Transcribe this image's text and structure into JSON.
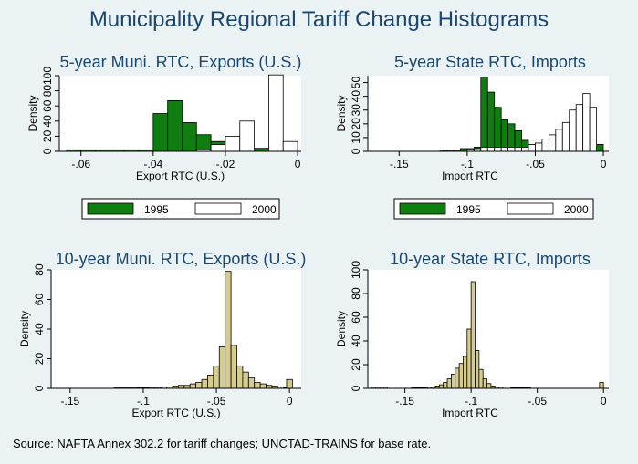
{
  "title": "Municipality Regional Tariff Change Histograms",
  "note": "Source: NAFTA Annex 302.2 for tariff changes; UNCTAD-TRAINS for base rate.",
  "colors": {
    "y1995": "#0f7d0f",
    "y2000": "#ffffff",
    "y10": "#d6cc8f",
    "title": "#1a476f"
  },
  "chart_data": [
    {
      "type": "bar",
      "title": "5-year Muni. RTC, Exports (U.S.)",
      "xlabel": "Export RTC (U.S.)",
      "ylabel": "Density",
      "xlim": [
        -0.066,
        0.001
      ],
      "ylim": [
        0,
        100
      ],
      "xticks": [
        -0.06,
        -0.04,
        -0.02,
        0
      ],
      "xtick_labels": [
        "-.06",
        "-.04",
        "-.02",
        "0"
      ],
      "yticks": [
        0,
        20,
        40,
        60,
        80,
        100
      ],
      "ytick_labels": [
        "0",
        "20",
        "40",
        "60",
        "80",
        "100"
      ],
      "bin_width": 0.004,
      "legend": {
        "position": "bottom",
        "entries": [
          "1995",
          "2000"
        ]
      },
      "series": [
        {
          "name": "1995",
          "bin_starts": [
            -0.064,
            -0.06,
            -0.056,
            -0.052,
            -0.048,
            -0.044,
            -0.04,
            -0.036,
            -0.032,
            -0.028,
            -0.024,
            -0.02,
            -0.016,
            -0.012,
            -0.008,
            -0.004
          ],
          "values": [
            2,
            2,
            2,
            2,
            2,
            2,
            50,
            67,
            38,
            22,
            13,
            6,
            5,
            4,
            6,
            5
          ]
        },
        {
          "name": "2000",
          "bin_starts": [
            -0.048,
            -0.044,
            -0.04,
            -0.036,
            -0.032,
            -0.028,
            -0.024,
            -0.02,
            -0.016,
            -0.012,
            -0.008,
            -0.004
          ],
          "values": [
            0,
            0,
            0,
            0,
            0,
            2,
            9,
            20,
            40,
            0,
            101,
            13
          ]
        }
      ]
    },
    {
      "type": "bar",
      "title": "5-year State RTC, Imports",
      "xlabel": "Import RTC",
      "ylabel": "Density",
      "xlim": [
        -0.173,
        0.004
      ],
      "ylim": [
        0,
        55
      ],
      "xticks": [
        -0.15,
        -0.1,
        -0.05,
        0
      ],
      "xtick_labels": [
        "-.15",
        "-.1",
        "-.05",
        "0"
      ],
      "yticks": [
        0,
        10,
        20,
        30,
        40,
        50
      ],
      "ytick_labels": [
        "0",
        "10",
        "20",
        "30",
        "40",
        "50"
      ],
      "bin_width": 0.005,
      "legend": {
        "position": "bottom",
        "entries": [
          "1995",
          "2000"
        ]
      },
      "series": [
        {
          "name": "1995",
          "bin_starts": [
            -0.12,
            -0.115,
            -0.11,
            -0.105,
            -0.1,
            -0.095,
            -0.09,
            -0.085,
            -0.08,
            -0.075,
            -0.07,
            -0.065,
            -0.06,
            -0.055,
            -0.05,
            -0.045,
            -0.04,
            -0.035,
            -0.005
          ],
          "values": [
            1,
            1,
            1,
            2,
            2,
            3,
            54,
            43,
            32,
            23,
            20,
            15,
            8,
            5,
            3,
            2,
            2,
            1,
            5
          ]
        },
        {
          "name": "2000",
          "bin_starts": [
            -0.1,
            -0.095,
            -0.09,
            -0.085,
            -0.08,
            -0.075,
            -0.07,
            -0.065,
            -0.06,
            -0.055,
            -0.05,
            -0.045,
            -0.04,
            -0.035,
            -0.03,
            -0.025,
            -0.02,
            -0.015,
            -0.01
          ],
          "values": [
            1,
            2,
            3,
            3,
            3,
            3,
            3,
            3,
            3,
            5,
            6,
            9,
            12,
            16,
            21,
            30,
            34,
            42,
            32
          ]
        }
      ]
    },
    {
      "type": "bar",
      "title": "10-year Muni. RTC, Exports (U.S.)",
      "xlabel": "Export RTC (U.S.)",
      "ylabel": "Density",
      "xlim": [
        -0.163,
        0.008
      ],
      "ylim": [
        0,
        80
      ],
      "xticks": [
        -0.15,
        -0.1,
        -0.05,
        0
      ],
      "xtick_labels": [
        "-.15",
        "-.1",
        "-.05",
        "0"
      ],
      "yticks": [
        0,
        20,
        40,
        60,
        80
      ],
      "ytick_labels": [
        "0",
        "20",
        "40",
        "60",
        "80"
      ],
      "bin_width": 0.004,
      "series": [
        {
          "name": "10-year",
          "bin_starts": [
            -0.12,
            -0.116,
            -0.112,
            -0.108,
            -0.104,
            -0.1,
            -0.096,
            -0.092,
            -0.088,
            -0.084,
            -0.08,
            -0.076,
            -0.072,
            -0.068,
            -0.064,
            -0.06,
            -0.056,
            -0.052,
            -0.048,
            -0.044,
            -0.04,
            -0.036,
            -0.032,
            -0.028,
            -0.024,
            -0.02,
            -0.016,
            -0.012,
            -0.008,
            -0.004,
            -0.002
          ],
          "values": [
            0.3,
            0.3,
            0.3,
            0.3,
            0.5,
            0.5,
            0.7,
            0.7,
            1,
            1,
            1.5,
            2,
            2,
            3,
            4,
            6,
            9,
            15,
            28,
            79,
            29,
            15,
            11,
            7,
            4,
            3,
            2,
            1.5,
            1,
            0.5,
            6
          ]
        }
      ]
    },
    {
      "type": "bar",
      "title": "10-year State RTC, Imports",
      "xlabel": "Import RTC",
      "ylabel": "Density",
      "xlim": [
        -0.178,
        0.004
      ],
      "ylim": [
        0,
        100
      ],
      "xticks": [
        -0.15,
        -0.1,
        -0.05,
        0
      ],
      "xtick_labels": [
        "-.15",
        "-.1",
        "-.05",
        "0"
      ],
      "yticks": [
        0,
        20,
        40,
        60,
        80,
        100
      ],
      "ytick_labels": [
        "0",
        "20",
        "40",
        "60",
        "80",
        "100"
      ],
      "bin_width": 0.003,
      "series": [
        {
          "name": "10-year",
          "bin_starts": [
            -0.175,
            -0.172,
            -0.169,
            -0.166,
            -0.145,
            -0.142,
            -0.139,
            -0.136,
            -0.133,
            -0.13,
            -0.127,
            -0.124,
            -0.121,
            -0.118,
            -0.115,
            -0.112,
            -0.109,
            -0.106,
            -0.103,
            -0.1,
            -0.097,
            -0.094,
            -0.091,
            -0.088,
            -0.085,
            -0.082,
            -0.079,
            -0.07,
            -0.067,
            -0.064,
            -0.061,
            -0.058,
            -0.003
          ],
          "values": [
            1,
            1,
            1,
            1,
            0.5,
            0.5,
            0.5,
            0.5,
            1,
            1,
            2,
            3,
            5,
            8,
            12,
            17,
            21,
            27,
            50,
            90,
            32,
            16,
            8,
            4,
            2,
            1,
            1,
            0.5,
            0.5,
            0.5,
            0.5,
            0.5,
            5
          ]
        }
      ]
    }
  ]
}
